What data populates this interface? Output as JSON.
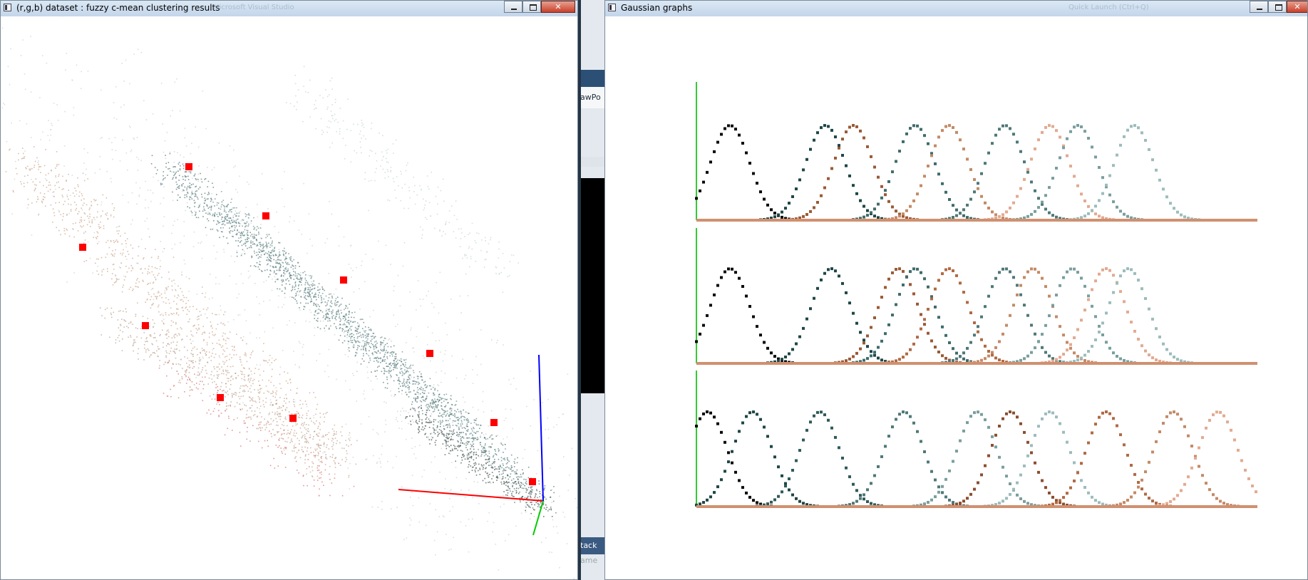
{
  "windows": [
    {
      "title": "(r,g,b) dataset : fuzzy c-mean clustering results",
      "ghost_title": "Microsoft Visual Studio"
    },
    {
      "title": "Gaussian graphs",
      "ghost_title": "Quick Launch (Ctrl+Q)"
    }
  ],
  "background_strip": {
    "items": [
      "awPo",
      "tack",
      "ame"
    ]
  },
  "scatter": {
    "axes": {
      "x": "#ff0000",
      "y": "#0000ff",
      "z": "#00cc00"
    },
    "centroid_color": "#ff0000",
    "cluster_colors": [
      "#1f4b4b",
      "#b0714a",
      "#cc3333",
      "#8fa7a7"
    ]
  },
  "gaussians": {
    "axis_color": "#d09070",
    "vertical_axis_color": "#33cc33",
    "rows": [
      {
        "curves": [
          {
            "mu": 0.06,
            "c": "#0a0a0a"
          },
          {
            "mu": 0.23,
            "c": "#1e4646"
          },
          {
            "mu": 0.28,
            "c": "#9a5a36"
          },
          {
            "mu": 0.39,
            "c": "#3f6c6c"
          },
          {
            "mu": 0.45,
            "c": "#c48a66"
          },
          {
            "mu": 0.55,
            "c": "#4f7878"
          },
          {
            "mu": 0.63,
            "c": "#e2aa90"
          },
          {
            "mu": 0.68,
            "c": "#7a9e9e"
          },
          {
            "mu": 0.78,
            "c": "#9cbcbc"
          }
        ]
      },
      {
        "curves": [
          {
            "mu": 0.06,
            "c": "#0a0a0a"
          },
          {
            "mu": 0.24,
            "c": "#1e4646"
          },
          {
            "mu": 0.36,
            "c": "#9a5a36"
          },
          {
            "mu": 0.39,
            "c": "#3f6c6c"
          },
          {
            "mu": 0.45,
            "c": "#b06a44"
          },
          {
            "mu": 0.55,
            "c": "#4f7878"
          },
          {
            "mu": 0.6,
            "c": "#c48a66"
          },
          {
            "mu": 0.67,
            "c": "#7a9e9e"
          },
          {
            "mu": 0.73,
            "c": "#e2aa90"
          },
          {
            "mu": 0.77,
            "c": "#9cbcbc"
          }
        ]
      },
      {
        "curves": [
          {
            "mu": 0.02,
            "c": "#0a0a0a"
          },
          {
            "mu": 0.1,
            "c": "#1e4646"
          },
          {
            "mu": 0.22,
            "c": "#2f5a5a"
          },
          {
            "mu": 0.37,
            "c": "#4f7878"
          },
          {
            "mu": 0.5,
            "c": "#7a9e9e"
          },
          {
            "mu": 0.56,
            "c": "#8a4e30"
          },
          {
            "mu": 0.63,
            "c": "#9cbcbc"
          },
          {
            "mu": 0.73,
            "c": "#b06a44"
          },
          {
            "mu": 0.85,
            "c": "#c48a66"
          },
          {
            "mu": 0.93,
            "c": "#e2aa90"
          }
        ]
      }
    ]
  }
}
